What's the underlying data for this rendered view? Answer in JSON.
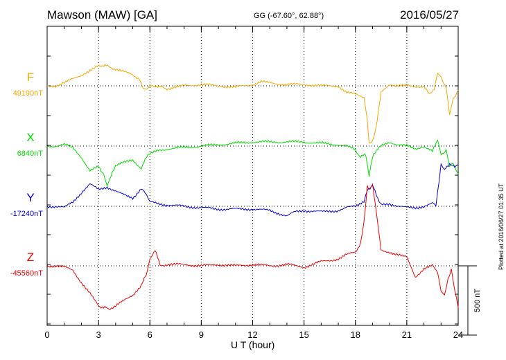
{
  "header": {
    "title": "Mawson (MAW)  [GA]",
    "coords": "GG (-67.60°,  62.88°)",
    "date": "2016/05/27"
  },
  "plotted_note": "Plotted at 2016/06/27 01:35 UT",
  "chart_data": {
    "type": "line",
    "title": "Mawson (MAW)  [GA]",
    "xlabel": "U T (hour)",
    "xlim": [
      0,
      24
    ],
    "xticks": [
      0,
      3,
      6,
      9,
      12,
      15,
      18,
      21,
      24
    ],
    "grid": true,
    "scale_bar": {
      "label": "500 nT",
      "value_nT": 500
    },
    "series": [
      {
        "name": "F",
        "baseline_label": "49190nT",
        "baseline_nT": 49190,
        "color": "#f5a800",
        "x": [
          0,
          0.5,
          1,
          1.5,
          2,
          2.5,
          3,
          3.3,
          3.6,
          4,
          4.5,
          5,
          5.4,
          5.6,
          5.8,
          6,
          6.3,
          7,
          8,
          9,
          10,
          11,
          12,
          12.5,
          13,
          14,
          15,
          16,
          17,
          17.5,
          18,
          18.5,
          18.7,
          18.8,
          19,
          19.2,
          19.5,
          20,
          21,
          21.5,
          22,
          22.3,
          22.6,
          22.8,
          23,
          23.3,
          23.5,
          23.7,
          24
        ],
        "y": [
          0,
          0,
          20,
          50,
          80,
          110,
          140,
          150,
          140,
          120,
          100,
          80,
          50,
          -10,
          -30,
          -5,
          0,
          -20,
          0,
          10,
          0,
          -10,
          10,
          30,
          20,
          10,
          10,
          0,
          0,
          -50,
          -60,
          -80,
          -250,
          -420,
          -400,
          -300,
          -50,
          10,
          0,
          -10,
          0,
          -60,
          -20,
          100,
          60,
          -10,
          -200,
          -100,
          -30
        ]
      },
      {
        "name": "X",
        "baseline_label": "6840nT",
        "baseline_nT": 6840,
        "color": "#00dd00",
        "x": [
          0,
          0.5,
          1,
          1.5,
          2,
          2.5,
          3,
          3.3,
          3.5,
          3.8,
          4,
          4.5,
          5,
          5.5,
          5.8,
          6,
          6.5,
          7,
          8,
          9,
          10,
          11,
          12,
          13,
          14,
          15,
          16,
          17,
          17.5,
          18,
          18.3,
          18.6,
          18.8,
          19,
          19.3,
          19.5,
          20,
          20.5,
          21,
          21.5,
          22,
          22.5,
          22.8,
          23,
          23.3,
          23.5,
          23.7,
          24
        ],
        "y": [
          0,
          0,
          10,
          -10,
          -80,
          -180,
          -150,
          -200,
          -280,
          -200,
          -140,
          -120,
          -100,
          -160,
          -80,
          -60,
          -30,
          -20,
          -10,
          0,
          10,
          20,
          30,
          30,
          30,
          30,
          20,
          10,
          0,
          -30,
          -80,
          -60,
          -220,
          -80,
          -20,
          0,
          30,
          10,
          0,
          -20,
          0,
          -40,
          50,
          -60,
          -30,
          -140,
          -120,
          -200
        ]
      },
      {
        "name": "Y",
        "baseline_label": "-17240nT",
        "baseline_nT": -17240,
        "color": "#0000dd",
        "x": [
          0,
          0.5,
          1,
          1.5,
          2,
          2.5,
          3,
          3.5,
          4,
          4.5,
          5,
          5.5,
          5.8,
          6,
          6.5,
          7,
          8,
          9,
          10,
          11,
          12,
          13,
          13.5,
          14,
          14.5,
          15,
          16,
          17,
          17.5,
          18,
          18.5,
          18.7,
          19,
          19.3,
          19.5,
          20,
          20.5,
          21,
          21.5,
          22,
          22.5,
          22.7,
          22.9,
          23,
          23.2,
          23.5,
          23.8,
          24
        ],
        "y": [
          0,
          0,
          -10,
          30,
          100,
          160,
          120,
          140,
          110,
          80,
          60,
          130,
          80,
          30,
          20,
          10,
          0,
          -10,
          -20,
          -20,
          -20,
          -30,
          -50,
          -70,
          -40,
          -30,
          -40,
          -30,
          -10,
          0,
          40,
          120,
          150,
          60,
          10,
          20,
          0,
          -10,
          -10,
          0,
          20,
          10,
          200,
          300,
          260,
          310,
          280,
          300
        ]
      },
      {
        "name": "Z",
        "baseline_label": "-45560nT",
        "baseline_nT": -45560,
        "color": "#ee0000",
        "x": [
          0,
          0.5,
          1,
          1.5,
          2,
          2.5,
          3,
          3.3,
          3.6,
          4,
          4.5,
          5,
          5.5,
          5.8,
          6,
          6.3,
          6.6,
          7,
          8,
          9,
          10,
          11,
          12,
          13,
          14,
          15,
          15.5,
          16,
          17,
          17.5,
          18,
          18.3,
          18.5,
          18.7,
          18.8,
          19,
          19.3,
          19.5,
          20,
          20.5,
          21,
          21.5,
          22,
          22.5,
          22.8,
          23,
          23.2,
          23.4,
          23.6,
          23.8,
          24
        ],
        "y": [
          0,
          0,
          -10,
          -30,
          -120,
          -200,
          -290,
          -300,
          -310,
          -290,
          -250,
          -210,
          -140,
          -60,
          40,
          120,
          0,
          10,
          10,
          0,
          10,
          0,
          10,
          0,
          10,
          -10,
          10,
          30,
          50,
          80,
          100,
          160,
          320,
          580,
          550,
          580,
          320,
          110,
          100,
          80,
          60,
          -80,
          -20,
          0,
          -40,
          -180,
          -220,
          -100,
          -20,
          -180,
          -300
        ]
      }
    ]
  }
}
